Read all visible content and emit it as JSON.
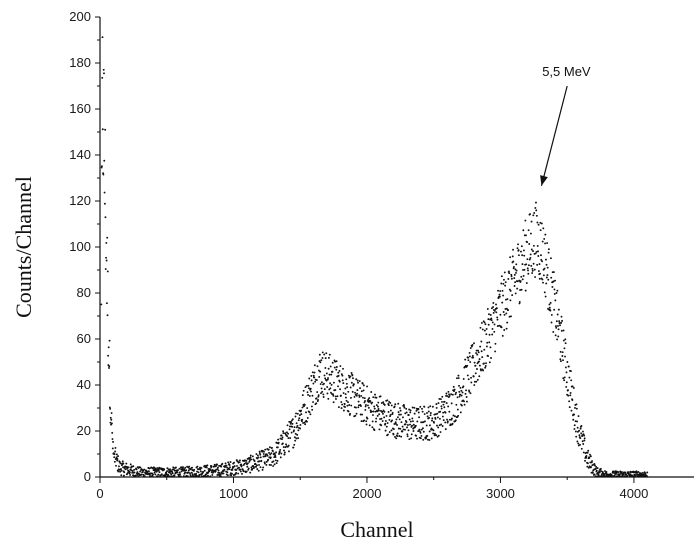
{
  "chart_data": {
    "type": "scatter",
    "title": "",
    "xlabel": "Channel",
    "ylabel": "Counts/Channel",
    "xlim": [
      0,
      4450
    ],
    "ylim": [
      0,
      200
    ],
    "xticks": [
      0,
      1000,
      2000,
      3000,
      4000
    ],
    "yticks": [
      0,
      20,
      40,
      60,
      80,
      100,
      120,
      140,
      160,
      180,
      200
    ],
    "grid": false,
    "legend": "none",
    "point_color": "#111111",
    "annotation": {
      "text": "5,5 MeV",
      "points_to": {
        "x": 3270,
        "y": 124
      }
    },
    "envelope": [
      {
        "x": 0,
        "y": 0
      },
      {
        "x": 20,
        "y": 170
      },
      {
        "x": 40,
        "y": 120
      },
      {
        "x": 60,
        "y": 70
      },
      {
        "x": 80,
        "y": 30
      },
      {
        "x": 100,
        "y": 10
      },
      {
        "x": 150,
        "y": 4
      },
      {
        "x": 300,
        "y": 2
      },
      {
        "x": 600,
        "y": 2
      },
      {
        "x": 900,
        "y": 3
      },
      {
        "x": 1100,
        "y": 5
      },
      {
        "x": 1300,
        "y": 9
      },
      {
        "x": 1450,
        "y": 20
      },
      {
        "x": 1550,
        "y": 33
      },
      {
        "x": 1650,
        "y": 46
      },
      {
        "x": 1750,
        "y": 42
      },
      {
        "x": 1900,
        "y": 35
      },
      {
        "x": 2050,
        "y": 29
      },
      {
        "x": 2200,
        "y": 25
      },
      {
        "x": 2350,
        "y": 23
      },
      {
        "x": 2500,
        "y": 24
      },
      {
        "x": 2650,
        "y": 32
      },
      {
        "x": 2800,
        "y": 48
      },
      {
        "x": 2950,
        "y": 66
      },
      {
        "x": 3100,
        "y": 85
      },
      {
        "x": 3200,
        "y": 98
      },
      {
        "x": 3270,
        "y": 104
      },
      {
        "x": 3330,
        "y": 95
      },
      {
        "x": 3420,
        "y": 70
      },
      {
        "x": 3500,
        "y": 45
      },
      {
        "x": 3580,
        "y": 22
      },
      {
        "x": 3650,
        "y": 8
      },
      {
        "x": 3720,
        "y": 2
      },
      {
        "x": 3800,
        "y": 1
      },
      {
        "x": 4100,
        "y": 1
      }
    ]
  }
}
